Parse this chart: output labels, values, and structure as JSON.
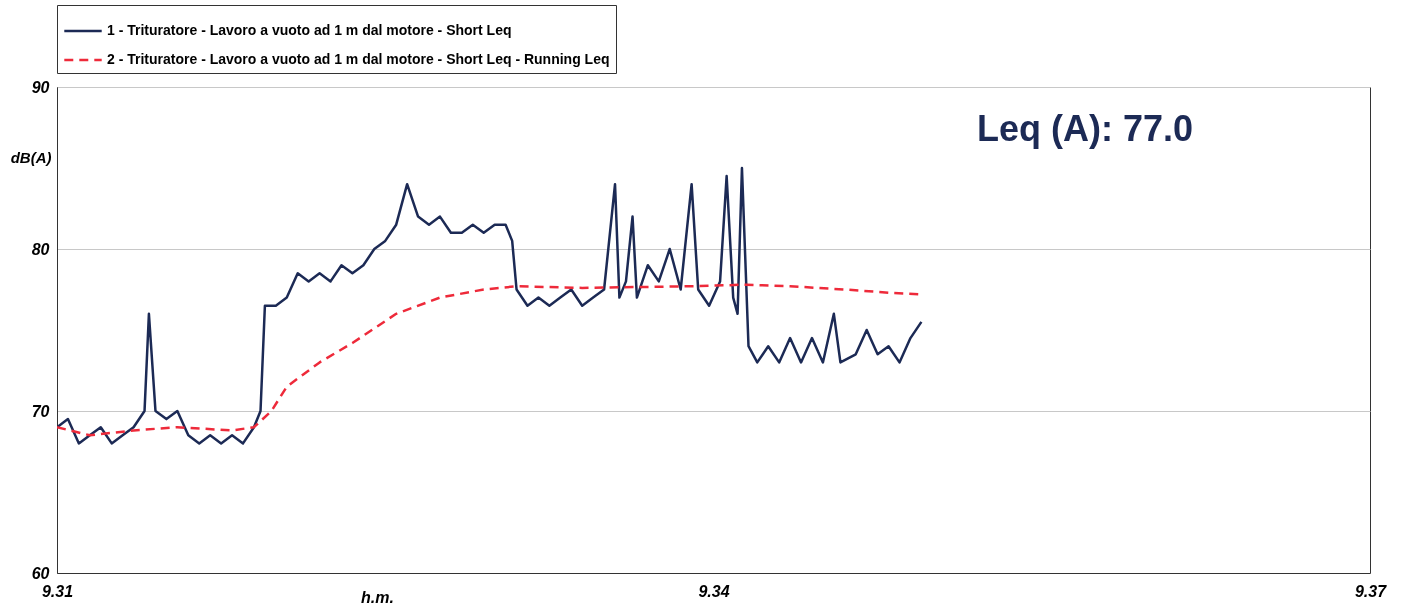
{
  "chart_data": {
    "type": "line",
    "xlabel": "h.m.",
    "ylabel": "dB(A)",
    "xlim": [
      9.31,
      9.37
    ],
    "xticks": [
      9.31,
      9.34,
      9.37
    ],
    "ylim": [
      60,
      90
    ],
    "yticks": [
      60,
      70,
      80,
      90
    ],
    "grid": "y",
    "legend": "top",
    "annotations": [
      "Leq (A): 77.0"
    ],
    "series": [
      {
        "name": "1 - Trituratore - Lavoro a vuoto ad 1 m dal motore - Short Leq",
        "color": "#1c2a55",
        "line_style": "solid",
        "x": [
          9.31,
          9.3105,
          9.311,
          9.3115,
          9.312,
          9.3125,
          9.313,
          9.3135,
          9.314,
          9.3142,
          9.3145,
          9.315,
          9.3155,
          9.316,
          9.3165,
          9.317,
          9.3175,
          9.318,
          9.3185,
          9.319,
          9.3193,
          9.3195,
          9.32,
          9.3205,
          9.321,
          9.3215,
          9.322,
          9.3225,
          9.323,
          9.3235,
          9.324,
          9.3245,
          9.325,
          9.3255,
          9.326,
          9.3265,
          9.327,
          9.3275,
          9.328,
          9.3285,
          9.329,
          9.3295,
          9.33,
          9.3305,
          9.3308,
          9.331,
          9.3315,
          9.332,
          9.3325,
          9.333,
          9.3335,
          9.334,
          9.3345,
          9.335,
          9.3355,
          9.3357,
          9.336,
          9.3363,
          9.3365,
          9.337,
          9.3375,
          9.338,
          9.3385,
          9.339,
          9.3393,
          9.3398,
          9.3403,
          9.3406,
          9.3409,
          9.3411,
          9.3413,
          9.3416,
          9.342,
          9.3425,
          9.343,
          9.3435,
          9.344,
          9.3445,
          9.345,
          9.3455,
          9.3458,
          9.3465,
          9.347,
          9.3475,
          9.348,
          9.3485,
          9.349,
          9.3495
        ],
        "values": [
          69,
          69.5,
          68,
          68.5,
          69,
          68,
          68.5,
          69,
          70,
          76,
          70,
          69.5,
          70,
          68.5,
          68,
          68.5,
          68,
          68.5,
          68,
          69,
          70,
          76.5,
          76.5,
          77,
          78.5,
          78,
          78.5,
          78,
          79,
          78.5,
          79,
          80,
          80.5,
          81.5,
          84,
          82,
          81.5,
          82,
          81,
          81,
          81.5,
          81,
          81.5,
          81.5,
          80.5,
          77.5,
          76.5,
          77,
          76.5,
          77,
          77.5,
          76.5,
          77,
          77.5,
          84,
          77,
          78,
          82,
          77,
          79,
          78,
          80,
          77.5,
          84,
          77.5,
          76.5,
          78,
          84.5,
          77,
          76,
          85,
          74,
          73,
          74,
          73,
          74.5,
          73,
          74.5,
          73,
          76,
          73,
          73.5,
          75,
          73.5,
          74,
          73,
          74.5,
          75.5
        ]
      },
      {
        "name": "2 - Trituratore - Lavoro a vuoto ad 1 m dal motore - Short Leq - Running Leq",
        "color": "#ee2a3a",
        "line_style": "dashed",
        "x": [
          9.31,
          9.3115,
          9.3135,
          9.3155,
          9.318,
          9.319,
          9.3198,
          9.3205,
          9.322,
          9.3235,
          9.3255,
          9.3275,
          9.3295,
          9.331,
          9.334,
          9.339,
          9.3415,
          9.3435,
          9.346,
          9.348,
          9.3495
        ],
        "values": [
          69,
          68.5,
          68.8,
          69,
          68.8,
          69,
          70,
          71.5,
          73,
          74.2,
          76,
          77,
          77.5,
          77.7,
          77.6,
          77.7,
          77.8,
          77.7,
          77.5,
          77.3,
          77.2
        ]
      }
    ]
  }
}
